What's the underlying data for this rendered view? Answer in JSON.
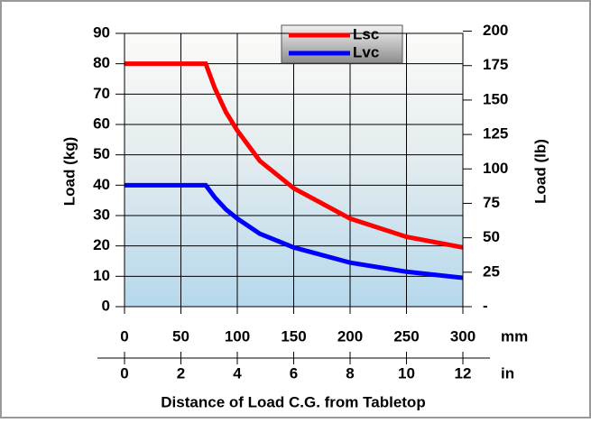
{
  "chart_data": {
    "type": "line",
    "ylabel": "Load (kg)",
    "y2label": "Load (lb)",
    "xlabel": "Distance of Load C.G. from Tabletop",
    "xunit": "mm",
    "x2unit": "in",
    "x": [
      0,
      72,
      80,
      90,
      100,
      120,
      150,
      200,
      250,
      300
    ],
    "series": [
      {
        "name": "Lsc",
        "color": "#ff0000",
        "values": [
          80,
          80,
          72,
          64,
          58,
          48,
          39,
          29,
          23,
          19.5
        ]
      },
      {
        "name": "Lvc",
        "color": "#0000ff",
        "values": [
          40,
          40,
          36,
          32,
          29,
          24,
          19.5,
          14.5,
          11.5,
          9.5
        ]
      }
    ],
    "xlim": [
      0,
      300
    ],
    "xticks": [
      0,
      50,
      100,
      150,
      200,
      250,
      300
    ],
    "x2lim": [
      0,
      12
    ],
    "x2ticks": [
      0,
      2,
      4,
      6,
      8,
      10,
      12
    ],
    "ylim": [
      0,
      90
    ],
    "yticks": [
      0,
      10,
      20,
      30,
      40,
      50,
      60,
      70,
      80,
      90
    ],
    "y2lim": [
      0,
      198.4
    ],
    "y2ticks": [
      {
        "value": 0,
        "label": "-"
      },
      25,
      50,
      75,
      100,
      125,
      150,
      175,
      200
    ],
    "grid": true
  }
}
